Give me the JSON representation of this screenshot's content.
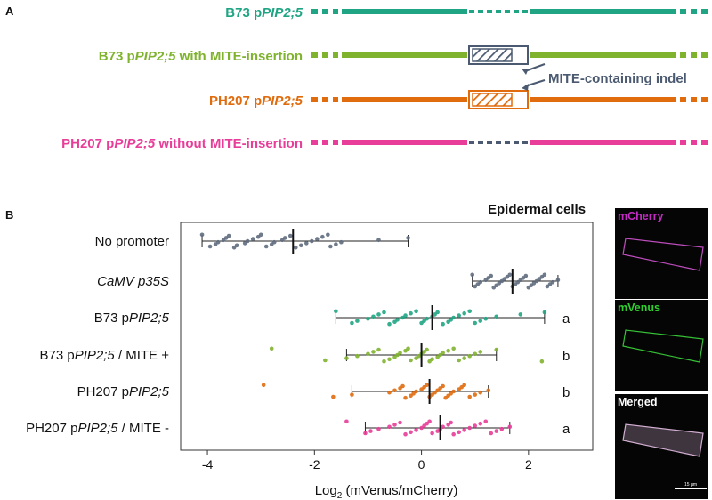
{
  "panel_a": {
    "letter": "A",
    "constructs": [
      {
        "pre": "B73  p",
        "gene": "PIP2;5",
        "post": "",
        "color": "#20a584",
        "insert": "gap"
      },
      {
        "pre": "B73  p",
        "gene": "PIP2;5",
        "post": " with MITE-insertion",
        "color": "#7fb32e",
        "insert": "box"
      },
      {
        "pre": "PH207 p",
        "gene": "PIP2;5",
        "post": "",
        "color": "#e06c0e",
        "insert": "box"
      },
      {
        "pre": "PH207 p",
        "gene": "PIP2;5",
        "post": " without MITE-insertion",
        "color": "#e83d98",
        "insert": "gap"
      }
    ],
    "indel_label": "MITE-containing indel",
    "indel_color": "#4b5a70"
  },
  "panel_b": {
    "letter": "B",
    "chart_data": {
      "type": "scatter",
      "title": "Epidermal cells",
      "xlabel": "Log",
      "xlabel_sub": "2",
      "xlabel_rest": " (mVenus/mCherry)",
      "xlim": [
        -4.5,
        3.2
      ],
      "xticks": [
        -4,
        -2,
        0,
        2
      ],
      "categories": [
        {
          "pre": "No promoter",
          "gene": "",
          "post": "",
          "italic_all": false
        },
        {
          "pre": "",
          "gene": "CaMV p35S",
          "post": "",
          "italic_all": true
        },
        {
          "pre": "B73  p",
          "gene": "PIP2;5",
          "post": "",
          "italic_all": false
        },
        {
          "pre": "B73  p",
          "gene": "PIP2;5",
          "post": " / MITE +",
          "italic_all": false
        },
        {
          "pre": "PH207 p",
          "gene": "PIP2;5",
          "post": "",
          "italic_all": false
        },
        {
          "pre": "PH207 p",
          "gene": "PIP2;5",
          "post": " / MITE -",
          "italic_all": false
        }
      ],
      "series": [
        {
          "name": "No promoter",
          "color": "#5f6b7e",
          "mean": -2.4,
          "min": -4.1,
          "max": -0.25,
          "letter": "",
          "values": [
            -4.1,
            -3.95,
            -3.85,
            -3.8,
            -3.7,
            -3.65,
            -3.6,
            -3.5,
            -3.45,
            -3.3,
            -3.25,
            -3.15,
            -3.05,
            -3.0,
            -2.9,
            -2.8,
            -2.75,
            -2.6,
            -2.55,
            -2.45,
            -2.35,
            -2.25,
            -2.15,
            -2.05,
            -1.95,
            -1.85,
            -1.75,
            -1.7,
            -1.6,
            -1.5,
            -0.8,
            -0.25
          ]
        },
        {
          "name": "CaMV p35S",
          "color": "#5f6b7e",
          "mean": 1.7,
          "min": 0.95,
          "max": 2.55,
          "letter": "",
          "values": [
            0.95,
            1.0,
            1.05,
            1.1,
            1.2,
            1.25,
            1.3,
            1.35,
            1.4,
            1.45,
            1.5,
            1.55,
            1.6,
            1.65,
            1.7,
            1.75,
            1.8,
            1.85,
            1.9,
            1.95,
            2.0,
            2.05,
            2.1,
            2.15,
            2.2,
            2.25,
            2.3,
            2.35,
            2.4,
            2.45,
            2.55
          ]
        },
        {
          "name": "B73 pPIP2;5",
          "color": "#20a584",
          "mean": 0.2,
          "min": -1.6,
          "max": 2.3,
          "letter": "a",
          "values": [
            -1.6,
            -1.3,
            -1.2,
            -1.0,
            -0.9,
            -0.8,
            -0.7,
            -0.6,
            -0.5,
            -0.45,
            -0.35,
            -0.3,
            -0.2,
            -0.1,
            0.0,
            0.05,
            0.1,
            0.2,
            0.25,
            0.3,
            0.4,
            0.5,
            0.55,
            0.6,
            0.7,
            0.8,
            0.9,
            1.0,
            1.1,
            1.2,
            1.4,
            1.85,
            2.3
          ]
        },
        {
          "name": "B73 pPIP2;5 / MITE +",
          "color": "#7fb32e",
          "mean": 0.0,
          "min": -1.4,
          "max": 1.4,
          "letter": "b",
          "values": [
            -2.8,
            -1.8,
            -1.4,
            -1.2,
            -1.0,
            -0.9,
            -0.8,
            -0.7,
            -0.6,
            -0.5,
            -0.45,
            -0.4,
            -0.3,
            -0.25,
            -0.2,
            -0.1,
            -0.05,
            0.0,
            0.05,
            0.1,
            0.15,
            0.2,
            0.3,
            0.35,
            0.4,
            0.5,
            0.6,
            0.7,
            0.8,
            0.9,
            1.0,
            1.1,
            1.4,
            2.25
          ]
        },
        {
          "name": "PH207 pPIP2;5",
          "color": "#e06c0e",
          "mean": 0.15,
          "min": -1.3,
          "max": 1.25,
          "letter": "b",
          "values": [
            -2.95,
            -1.65,
            -1.3,
            -0.6,
            -0.5,
            -0.4,
            -0.35,
            -0.3,
            -0.2,
            -0.15,
            -0.1,
            0.0,
            0.05,
            0.1,
            0.15,
            0.2,
            0.25,
            0.3,
            0.35,
            0.4,
            0.45,
            0.5,
            0.55,
            0.6,
            0.7,
            0.75,
            0.8,
            0.9,
            1.0,
            1.1,
            1.25
          ]
        },
        {
          "name": "PH207 pPIP2;5 / MITE -",
          "color": "#e83d98",
          "mean": 0.35,
          "min": -1.05,
          "max": 1.65,
          "letter": "a",
          "values": [
            -1.4,
            -1.05,
            -0.95,
            -0.8,
            -0.6,
            -0.5,
            -0.4,
            -0.3,
            -0.2,
            -0.1,
            0.0,
            0.05,
            0.1,
            0.15,
            0.2,
            0.3,
            0.35,
            0.4,
            0.5,
            0.55,
            0.6,
            0.7,
            0.8,
            0.9,
            1.0,
            1.1,
            1.2,
            1.3,
            1.4,
            1.5,
            1.65
          ]
        }
      ]
    }
  },
  "micrographs": [
    {
      "label": "mCherry",
      "color": "#c42bc4",
      "cell": "#e05ae0"
    },
    {
      "label": "mVenus",
      "color": "#2ecf2e",
      "cell": "#3fe33f"
    },
    {
      "label": "Merged",
      "color": "#ffffff",
      "cell": "#f0c8f0"
    }
  ],
  "scale_bar": "15 µm"
}
